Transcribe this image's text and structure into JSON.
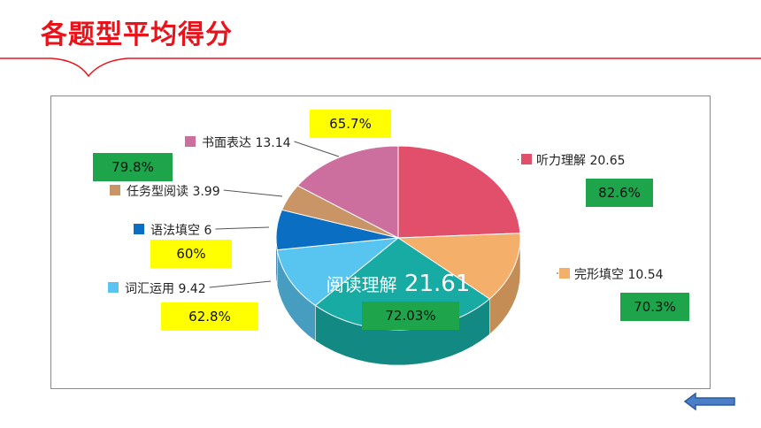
{
  "page": {
    "title": "各题型平均得分"
  },
  "chart_data": {
    "type": "pie",
    "center_label": {
      "text": "阅读理解",
      "value": "21.61"
    },
    "slices": [
      {
        "label": "听力理解",
        "value": 20.65,
        "color": "#e24f6a",
        "rate": "82.6%",
        "rate_color": "green"
      },
      {
        "label": "完形填空",
        "value": 10.54,
        "color": "#f4b06a",
        "rate": "70.3%",
        "rate_color": "green"
      },
      {
        "label": "阅读理解",
        "value": 21.61,
        "color": "#18aba4",
        "rate": "72.03%",
        "rate_color": "green"
      },
      {
        "label": "词汇运用",
        "value": 9.42,
        "color": "#58c4f0",
        "rate": "62.8%",
        "rate_color": "yellow"
      },
      {
        "label": "语法填空",
        "value": 6,
        "color": "#0a6ec2",
        "rate": "60%",
        "rate_color": "yellow"
      },
      {
        "label": "任务型阅读",
        "value": 3.99,
        "color": "#c99567",
        "rate": "79.8%",
        "rate_color": "green"
      },
      {
        "label": "书面表达",
        "value": 13.14,
        "color": "#cd6f9e",
        "rate": "65.7%",
        "rate_color": "yellow"
      }
    ]
  },
  "nav": {
    "arrow_icon": "left-arrow-icon"
  }
}
